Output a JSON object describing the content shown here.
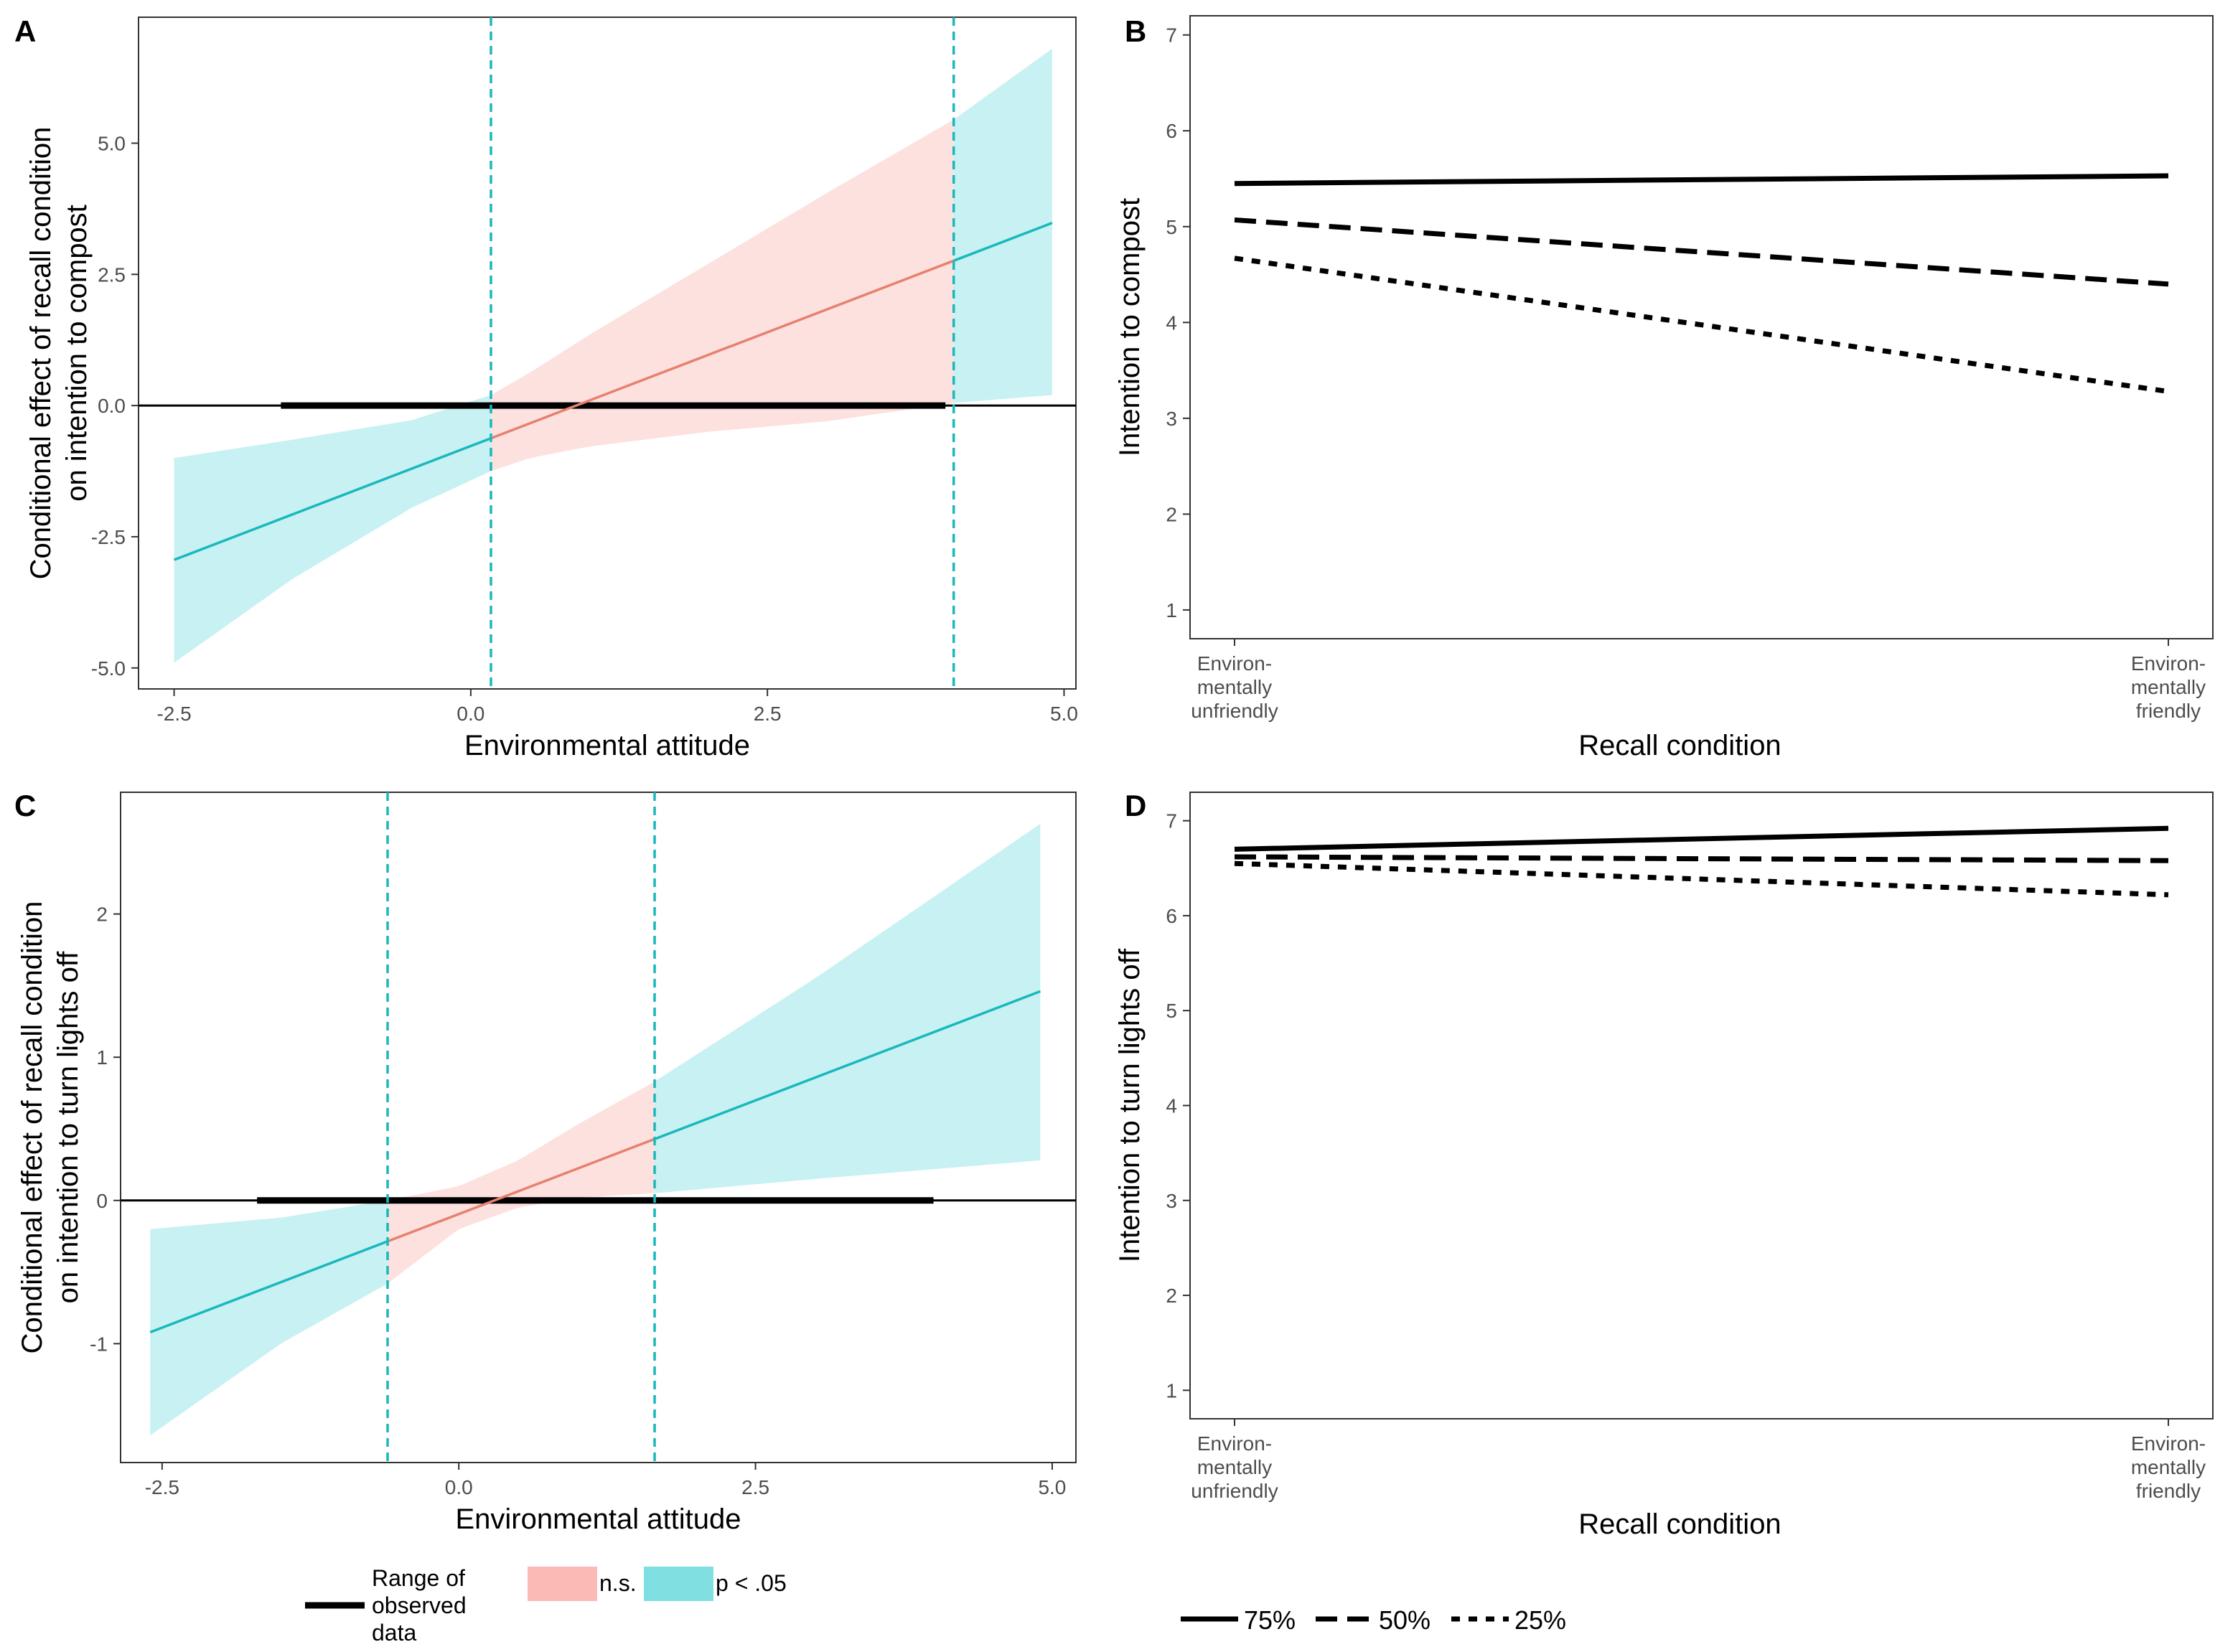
{
  "colors": {
    "ns_fill": "#f8766d",
    "sig_fill": "#00bfc4",
    "ns_line": "#e8806e",
    "sig_line": "#19b8bd",
    "axis": "#333333",
    "data_line": "#000000"
  },
  "chart_data": [
    {
      "panel": "A",
      "type": "area",
      "description": "Johnson-Neyman plot",
      "xlabel": "Environmental attitude",
      "ylabel": [
        "Conditional effect of recall condition",
        "on intention to compost"
      ],
      "xlim": [
        -2.8,
        5.1
      ],
      "ylim": [
        -5.4,
        7.4
      ],
      "xticks": [
        -2.5,
        0.0,
        2.5,
        5.0
      ],
      "xtick_labels": [
        "-2.5",
        "0.0",
        "2.5",
        "5.0"
      ],
      "yticks": [
        -5.0,
        -2.5,
        0.0,
        2.5,
        5.0
      ],
      "ytick_labels": [
        "-5.0",
        "-2.5",
        "0.0",
        "2.5",
        "5.0"
      ],
      "jn_points": [
        0.17,
        4.07
      ],
      "observed_range": [
        -1.6,
        4.0
      ],
      "effect_line": {
        "x": [
          -2.5,
          4.9
        ],
        "y": [
          -2.94,
          3.48
        ]
      },
      "ci_upper": {
        "x": [
          -2.5,
          -1.5,
          -0.5,
          0.17,
          0.5,
          1.0,
          2.0,
          3.0,
          4.07,
          4.9
        ],
        "y": [
          -1.0,
          -0.65,
          -0.28,
          0.2,
          0.63,
          1.35,
          2.7,
          4.05,
          5.45,
          6.8
        ]
      },
      "ci_lower": {
        "x": [
          -2.5,
          -1.5,
          -0.5,
          0.17,
          0.5,
          1.0,
          2.0,
          3.0,
          4.07,
          4.9
        ],
        "y": [
          -4.9,
          -3.3,
          -1.95,
          -1.25,
          -1.0,
          -0.78,
          -0.5,
          -0.3,
          0.05,
          0.2
        ]
      }
    },
    {
      "panel": "B",
      "type": "line",
      "xlabel": "Recall condition",
      "ylabel": "Intention to compost",
      "categories": [
        [
          "Environ-",
          "mentally",
          "unfriendly"
        ],
        [
          "Environ-",
          "mentally",
          "friendly"
        ]
      ],
      "ylim": [
        0.7,
        7.2
      ],
      "yticks": [
        1,
        2,
        3,
        4,
        5,
        6,
        7
      ],
      "ytick_labels": [
        "1",
        "2",
        "3",
        "4",
        "5",
        "6",
        "7"
      ],
      "series": [
        {
          "name": "75%",
          "values": [
            5.45,
            5.53
          ]
        },
        {
          "name": "50%",
          "values": [
            5.07,
            4.4
          ]
        },
        {
          "name": "25%",
          "values": [
            4.67,
            3.28
          ]
        }
      ]
    },
    {
      "panel": "C",
      "type": "area",
      "description": "Johnson-Neyman plot",
      "xlabel": "Environmental attitude",
      "ylabel": [
        "Conditional effect of recall condition",
        "on intention to turn lights off"
      ],
      "xlim": [
        -2.85,
        5.2
      ],
      "ylim": [
        -1.83,
        2.85
      ],
      "xticks": [
        -2.5,
        0.0,
        2.5,
        5.0
      ],
      "xtick_labels": [
        "-2.5",
        "0.0",
        "2.5",
        "5.0"
      ],
      "yticks": [
        -1,
        0,
        1,
        2
      ],
      "ytick_labels": [
        "-1",
        "0",
        "1",
        "2"
      ],
      "jn_points": [
        -0.6,
        1.65
      ],
      "observed_range": [
        -1.7,
        4.0
      ],
      "effect_line": {
        "x": [
          -2.6,
          4.9
        ],
        "y": [
          -0.92,
          1.46
        ]
      },
      "ci_upper": {
        "x": [
          -2.6,
          -1.5,
          -0.6,
          0.0,
          0.5,
          1.0,
          1.65,
          3.0,
          4.9
        ],
        "y": [
          -0.2,
          -0.12,
          0.0,
          0.1,
          0.28,
          0.53,
          0.83,
          1.55,
          2.63
        ]
      },
      "ci_lower": {
        "x": [
          -2.6,
          -1.5,
          -0.6,
          0.0,
          0.5,
          1.0,
          1.65,
          3.0,
          4.9
        ],
        "y": [
          -1.64,
          -1.0,
          -0.58,
          -0.2,
          -0.05,
          0.02,
          0.05,
          0.15,
          0.28
        ]
      }
    },
    {
      "panel": "D",
      "type": "line",
      "xlabel": "Recall condition",
      "ylabel": "Intention to turn lights off",
      "categories": [
        [
          "Environ-",
          "mentally",
          "unfriendly"
        ],
        [
          "Environ-",
          "mentally",
          "friendly"
        ]
      ],
      "ylim": [
        0.7,
        7.3
      ],
      "yticks": [
        1,
        2,
        3,
        4,
        5,
        6,
        7
      ],
      "ytick_labels": [
        "1",
        "2",
        "3",
        "4",
        "5",
        "6",
        "7"
      ],
      "series": [
        {
          "name": "75%",
          "values": [
            6.7,
            6.92
          ]
        },
        {
          "name": "50%",
          "values": [
            6.62,
            6.58
          ]
        },
        {
          "name": "25%",
          "values": [
            6.55,
            6.22
          ]
        }
      ]
    }
  ],
  "legend_left": {
    "range_label": [
      "Range of",
      "observed",
      "data"
    ],
    "ns_label": "n.s.",
    "sig_label": "p < .05"
  },
  "legend_right": {
    "items": [
      "75%",
      "50%",
      "25%"
    ]
  }
}
